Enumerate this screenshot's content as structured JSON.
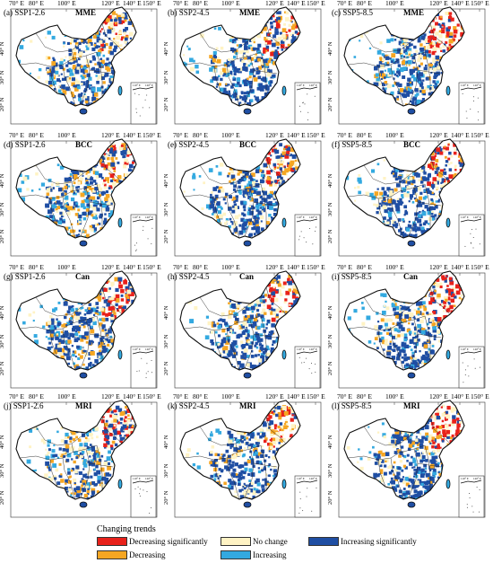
{
  "figure": {
    "lon_ticks": [
      "70° E",
      "80° E",
      "100° E",
      "120° E",
      "140° E",
      "150° E"
    ],
    "lat_ticks": [
      "40° N",
      "30° N",
      "20° N"
    ],
    "inset_lon_ticks": [
      "110° E",
      "120° E"
    ],
    "panels": [
      {
        "title": "(a) SSP1-2.6",
        "model": "MME",
        "ne_pattern": "edge",
        "south_pattern": "mixed"
      },
      {
        "title": "(b) SSP2-4.5",
        "model": "MME",
        "ne_pattern": "edge",
        "south_pattern": "blue"
      },
      {
        "title": "(c) SSP5-8.5",
        "model": "MME",
        "ne_pattern": "strong",
        "south_pattern": "blue"
      },
      {
        "title": "(d) SSP1-2.6",
        "model": "BCC",
        "ne_pattern": "edge",
        "south_pattern": "yellow"
      },
      {
        "title": "(e) SSP2-4.5",
        "model": "BCC",
        "ne_pattern": "edge",
        "south_pattern": "blue"
      },
      {
        "title": "(f) SSP5-8.5",
        "model": "BCC",
        "ne_pattern": "edge",
        "south_pattern": "blue"
      },
      {
        "title": "(g) SSP1-2.6",
        "model": "Can",
        "ne_pattern": "strong",
        "south_pattern": "mixed"
      },
      {
        "title": "(h) SSP2-4.5",
        "model": "Can",
        "ne_pattern": "strong",
        "south_pattern": "blue"
      },
      {
        "title": "(i) SSP5-8.5",
        "model": "Can",
        "ne_pattern": "strong",
        "south_pattern": "blue"
      },
      {
        "title": "(j) SSP1-2.6",
        "model": "MRI",
        "ne_pattern": "strong",
        "south_pattern": "mixed"
      },
      {
        "title": "(k) SSP2-4.5",
        "model": "MRI",
        "ne_pattern": "edge",
        "south_pattern": "blue"
      },
      {
        "title": "(l) SSP5-8.5",
        "model": "MRI",
        "ne_pattern": "strong",
        "south_pattern": "blue"
      }
    ]
  },
  "legend": {
    "title": "Changing trends",
    "items": [
      {
        "label": "Decreasing significantly",
        "color": "#e8211b"
      },
      {
        "label": "No change",
        "color": "#fff3c4"
      },
      {
        "label": "Increasing significantly",
        "color": "#1f4ea3"
      },
      {
        "label": "Decreasing",
        "color": "#f5a623"
      },
      {
        "label": "Increasing",
        "color": "#33a9e0"
      }
    ]
  },
  "colors": {
    "dec_sig": "#e8211b",
    "dec": "#f5a623",
    "none": "#fff3c4",
    "inc": "#33a9e0",
    "inc_sig": "#1f4ea3",
    "outline": "#111111"
  }
}
